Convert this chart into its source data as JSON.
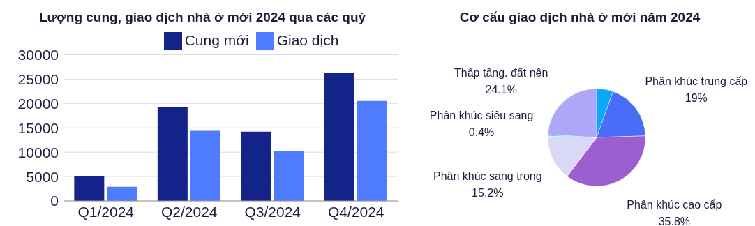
{
  "chart_data": [
    {
      "type": "bar",
      "title": "Lượng cung, giao dịch nhà ở mới 2024 qua các quý",
      "categories": [
        "Q1/2024",
        "Q2/2024",
        "Q3/2024",
        "Q4/2024"
      ],
      "series": [
        {
          "name": "Cung mới",
          "color": "#14238a",
          "values": [
            5100,
            19300,
            14200,
            26300
          ]
        },
        {
          "name": "Giao dịch",
          "color": "#4f7bff",
          "values": [
            2900,
            14400,
            10200,
            20500
          ]
        }
      ],
      "ylim": [
        0,
        30000
      ],
      "yticks": [
        0,
        5000,
        10000,
        15000,
        20000,
        25000,
        30000
      ],
      "grid": "y",
      "legend": "top"
    },
    {
      "type": "pie",
      "title": "Cơ cấu giao dịch nhà ở mới năm 2024",
      "categories": [
        null,
        "Phân khúc trung cấp",
        "Phân khúc cao cấp",
        "Phân khúc sang trọng",
        "Phân khúc siêu sang",
        "Thấp tầng. đất nền"
      ],
      "values": [
        5.5,
        19,
        35.8,
        15.2,
        0.4,
        24.1
      ],
      "value_labels": [
        null,
        "19%",
        "35.8%",
        "15.2%",
        "0.4%",
        "24.1%"
      ],
      "colors": [
        "#0aa8f7",
        "#4a6cf7",
        "#9b5fd0",
        "#d9d9f7",
        "#33bbee",
        "#aea6f8"
      ]
    }
  ]
}
